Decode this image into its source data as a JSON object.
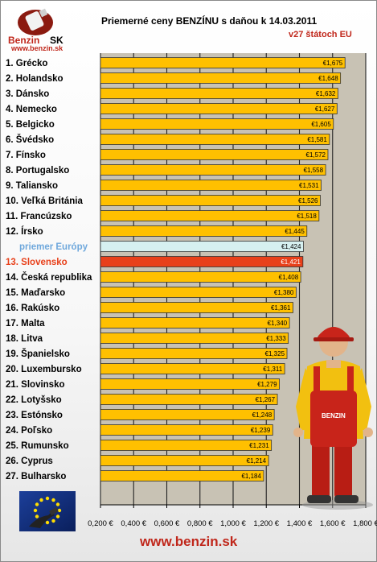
{
  "header": {
    "logo_text_left": "Benzin",
    "logo_text_right": "SK",
    "logo_url": "www.benzin.sk",
    "title": "Priemerné ceny BENZÍNU s daňou k 14.03.2011",
    "subtitle": "v27 štátoch EU"
  },
  "footer": {
    "url": "www.benzin.sk"
  },
  "colors": {
    "bar": "#ffc000",
    "bar_highlight_sk": "#e8401a",
    "bar_average": "#d6f0f0",
    "label_highlight": "#e8401a",
    "label_average": "#6fa8dc",
    "plot_bg": "#c8c2b4"
  },
  "chart_data": {
    "type": "bar",
    "orientation": "horizontal",
    "title": "Priemerné ceny BENZÍNU s daňou k 14.03.2011",
    "subtitle": "v27 štátoch EU",
    "xlim": [
      0.2,
      1.8
    ],
    "xticks": [
      "0,200 €",
      "0,400 €",
      "0,600 €",
      "0,800 €",
      "1,000 €",
      "1,200 €",
      "1,400 €",
      "1,600 €",
      "1,800 €"
    ],
    "grid": true,
    "categories": [
      "1. Grécko",
      "2. Holandsko",
      "3. Dánsko",
      "4. Nemecko",
      "5. Belgicko",
      "6. Švédsko",
      "7. Fínsko",
      "8. Portugalsko",
      "9. Taliansko",
      "10. Veľká Británia",
      "11. Francúzsko",
      "12. Írsko",
      "priemer Európy",
      "13. Slovensko",
      "14. Česká republika",
      "15. Maďarsko",
      "16. Rakúsko",
      "17. Malta",
      "18. Litva",
      "19. Španielsko",
      "20. Luxembursko",
      "21. Slovinsko",
      "22. Lotyšsko",
      "23. Estónsko",
      "24. Poľsko",
      "25. Rumunsko",
      "26. Cyprus",
      "27. Bulharsko"
    ],
    "values": [
      1.675,
      1.648,
      1.632,
      1.627,
      1.605,
      1.581,
      1.572,
      1.558,
      1.531,
      1.526,
      1.518,
      1.445,
      1.424,
      1.421,
      1.408,
      1.38,
      1.361,
      1.34,
      1.333,
      1.325,
      1.311,
      1.279,
      1.267,
      1.248,
      1.239,
      1.231,
      1.214,
      1.184
    ],
    "data_labels": [
      "€1,675",
      "€1,648",
      "€1,632",
      "€1,627",
      "€1,605",
      "€1,581",
      "€1,572",
      "€1,558",
      "€1,531",
      "€1,526",
      "€1,518",
      "€1,445",
      "€1,424",
      "€1,421",
      "€1,408",
      "€1,380",
      "€1,361",
      "€1,340",
      "€1,333",
      "€1,325",
      "€1,311",
      "€1,279",
      "€1,267",
      "€1,248",
      "€1,239",
      "€1,231",
      "€1,214",
      "€1,184"
    ],
    "highlight_index": 13,
    "average_index": 12
  }
}
